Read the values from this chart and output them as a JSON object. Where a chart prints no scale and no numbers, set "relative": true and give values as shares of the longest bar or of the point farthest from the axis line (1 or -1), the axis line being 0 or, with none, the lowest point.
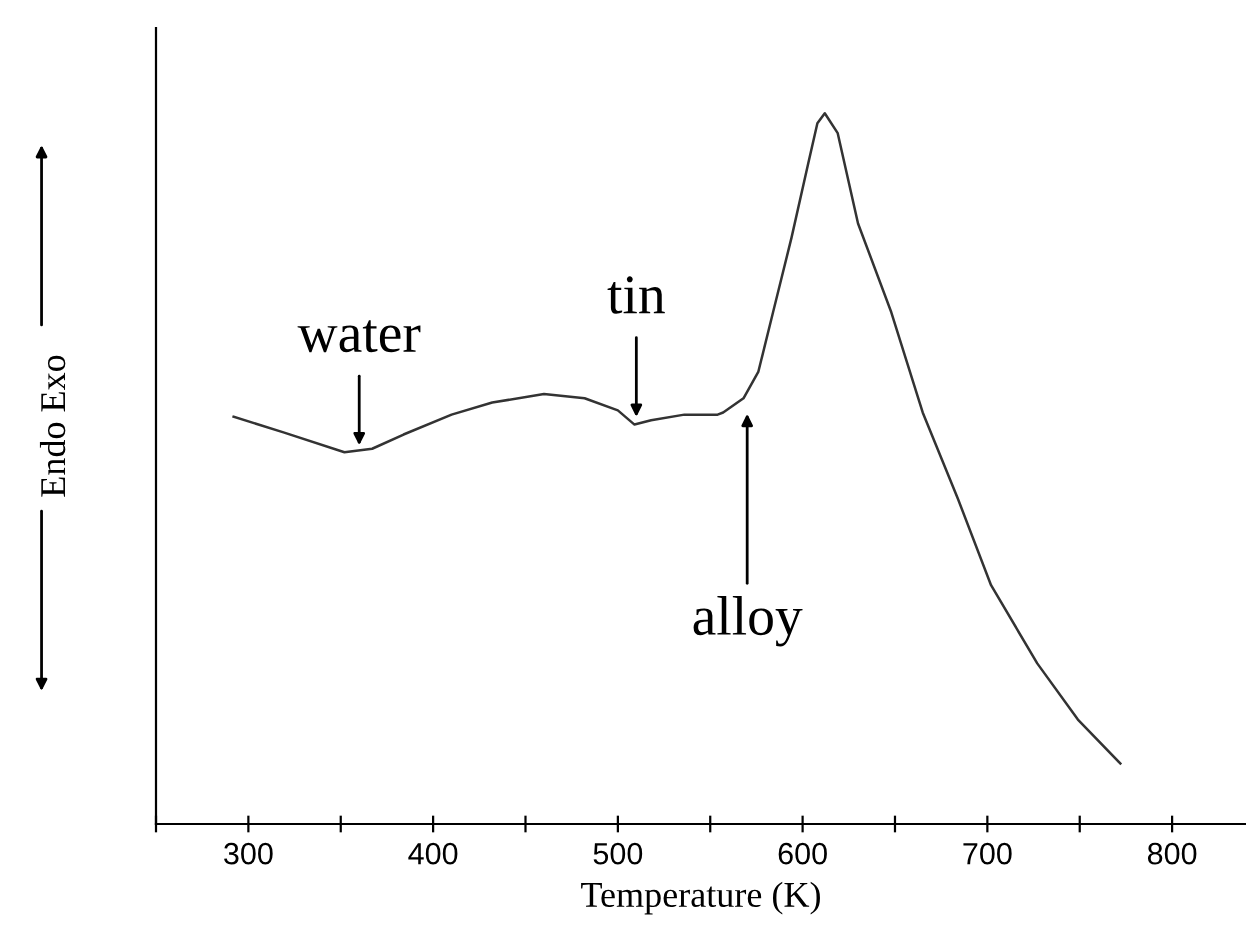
{
  "chart_data": {
    "type": "line",
    "relative": true,
    "xlabel": "Temperature (K)",
    "ylabel": "Endo Exo",
    "xlim": [
      250,
      840
    ],
    "xticks": [
      {
        "value": 250,
        "label": null
      },
      300,
      {
        "value": 350,
        "label": null
      },
      400,
      {
        "value": 450,
        "label": null
      },
      500,
      {
        "value": 550,
        "label": null
      },
      600,
      {
        "value": 650,
        "label": null
      },
      700,
      {
        "value": 750,
        "label": null
      },
      800
    ],
    "series": [
      {
        "color": "#333333",
        "x": [
          292,
          319,
          352,
          367,
          384,
          410,
          432,
          460,
          482,
          500,
          509,
          518,
          536,
          554,
          557,
          568,
          576,
          584,
          594,
          603,
          608,
          612,
          619,
          630,
          648,
          665,
          684,
          702,
          727,
          749,
          772
        ],
        "values": [
          0.573,
          0.551,
          0.523,
          0.528,
          0.548,
          0.576,
          0.593,
          0.605,
          0.599,
          0.582,
          0.562,
          0.568,
          0.576,
          0.576,
          0.579,
          0.599,
          0.636,
          0.72,
          0.825,
          0.929,
          0.986,
          1.0,
          0.972,
          0.845,
          0.72,
          0.579,
          0.458,
          0.336,
          0.226,
          0.147,
          0.085
        ]
      }
    ],
    "annotations": [
      {
        "text": "water",
        "x": 360,
        "y": 0.525
      },
      {
        "text": "tin",
        "x": 510,
        "y": 0.565
      },
      {
        "text": "alloy",
        "x": 570,
        "y": 0.585
      }
    ],
    "grid": false,
    "marker": "none",
    "line_style": "solid"
  }
}
